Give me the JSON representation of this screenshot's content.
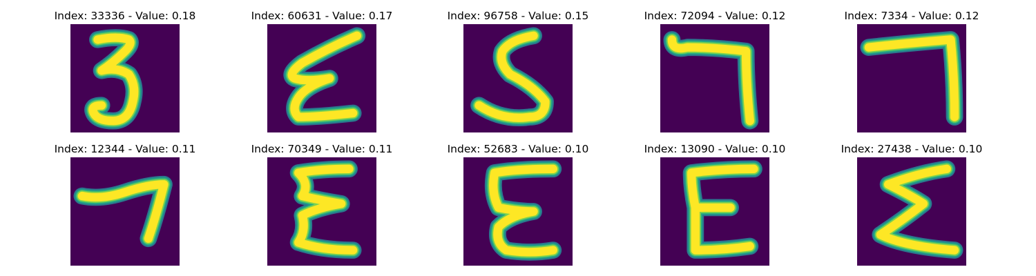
{
  "colors": {
    "background": "#440154",
    "stroke_core": "#fde725",
    "stroke_mid": "#7ad151",
    "stroke_edge": "#22a884",
    "stroke_halo": "#2a788e"
  },
  "images": [
    {
      "title": "Index: 33336 - Value: 0.18",
      "depicts": "3"
    },
    {
      "title": "Index: 60631 - Value: 0.17",
      "depicts": "E"
    },
    {
      "title": "Index: 96758 - Value: 0.15",
      "depicts": "S"
    },
    {
      "title": "Index: 72094 - Value: 0.12",
      "depicts": "7"
    },
    {
      "title": "Index: 7334 - Value: 0.12",
      "depicts": "7"
    },
    {
      "title": "Index: 12344 - Value: 0.11",
      "depicts": "7"
    },
    {
      "title": "Index: 70349 - Value: 0.11",
      "depicts": "E"
    },
    {
      "title": "Index: 52683 - Value: 0.10",
      "depicts": "E"
    },
    {
      "title": "Index: 13090 - Value: 0.10",
      "depicts": "E"
    },
    {
      "title": "Index: 27438 - Value: 0.10",
      "depicts": "Σ"
    }
  ]
}
